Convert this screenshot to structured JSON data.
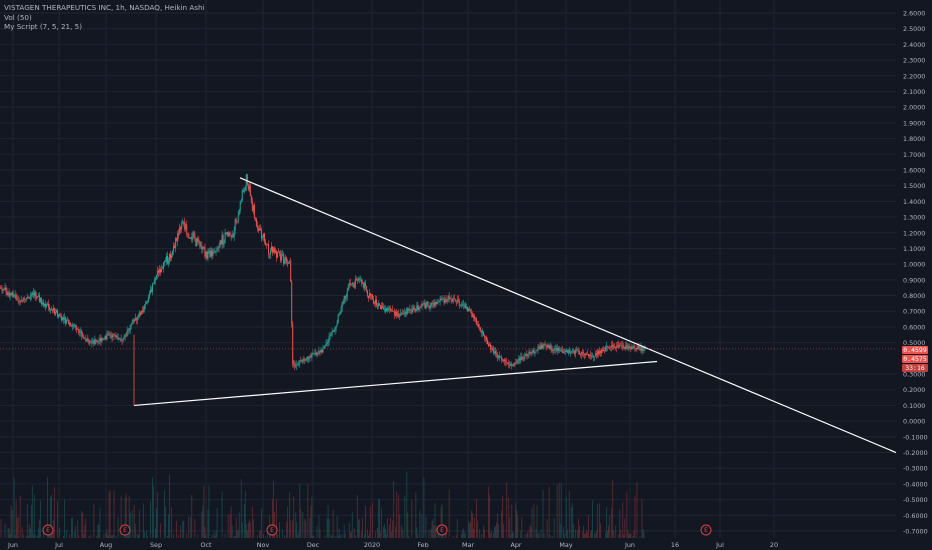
{
  "legend": {
    "title": "VISTAGEN THERAPEUTICS INC, 1h, NASDAQ, Heikin Ashi",
    "volume": "Vol (50)",
    "script": "My Script (7, 5, 21, 5)"
  },
  "price_tags": {
    "last_price": "0.4599",
    "close_price": "0.4575",
    "countdown": "33:16"
  },
  "earnings_marker_label": "E",
  "colors": {
    "background": "#131722",
    "up": "#26a69a",
    "down": "#ef5350",
    "trendline": "#ffffff",
    "grid": "#1f2433",
    "axis_text": "#b2b5be"
  },
  "chart_data": {
    "type": "candlestick",
    "title": "VISTAGEN THERAPEUTICS INC, 1h, NASDAQ, Heikin Ashi",
    "x_ticks": [
      "Jun",
      "Jul",
      "Aug",
      "Sep",
      "Oct",
      "Nov",
      "Dec",
      "2020",
      "Feb",
      "Mar",
      "Apr",
      "May",
      "Jun",
      "16",
      "Jul",
      "20"
    ],
    "y_ticks": [
      "2.6000",
      "2.5000",
      "2.4000",
      "2.3000",
      "2.2000",
      "2.1000",
      "2.0000",
      "1.9000",
      "1.8000",
      "1.7000",
      "1.6000",
      "1.5000",
      "1.4000",
      "1.3000",
      "1.2000",
      "1.1000",
      "1.0000",
      "0.9000",
      "0.8000",
      "0.7000",
      "0.6000",
      "0.5000",
      "0.3000",
      "0.2000",
      "0.1000",
      "0.0000",
      "-0.1000",
      "-0.2000",
      "-0.3000",
      "-0.4000",
      "-0.5000",
      "-0.6000",
      "-0.7000"
    ],
    "ylim": [
      -0.72,
      2.65
    ],
    "price_path": [
      {
        "t": 0.0,
        "p": 0.85
      },
      {
        "t": 0.02,
        "p": 0.78
      },
      {
        "t": 0.04,
        "p": 0.8
      },
      {
        "t": 0.06,
        "p": 0.72
      },
      {
        "t": 0.075,
        "p": 0.65
      },
      {
        "t": 0.09,
        "p": 0.6
      },
      {
        "t": 0.1,
        "p": 0.52
      },
      {
        "t": 0.11,
        "p": 0.5
      },
      {
        "t": 0.13,
        "p": 0.55
      },
      {
        "t": 0.145,
        "p": 0.52
      },
      {
        "t": 0.155,
        "p": 0.62
      },
      {
        "t": 0.17,
        "p": 0.72
      },
      {
        "t": 0.185,
        "p": 0.95
      },
      {
        "t": 0.2,
        "p": 1.05
      },
      {
        "t": 0.215,
        "p": 1.25
      },
      {
        "t": 0.23,
        "p": 1.15
      },
      {
        "t": 0.245,
        "p": 1.05
      },
      {
        "t": 0.26,
        "p": 1.15
      },
      {
        "t": 0.275,
        "p": 1.2
      },
      {
        "t": 0.29,
        "p": 1.55
      },
      {
        "t": 0.3,
        "p": 1.3
      },
      {
        "t": 0.315,
        "p": 1.1
      },
      {
        "t": 0.33,
        "p": 1.05
      },
      {
        "t": 0.342,
        "p": 1.0
      },
      {
        "t": 0.345,
        "p": 0.35
      },
      {
        "t": 0.36,
        "p": 0.4
      },
      {
        "t": 0.38,
        "p": 0.45
      },
      {
        "t": 0.395,
        "p": 0.6
      },
      {
        "t": 0.41,
        "p": 0.85
      },
      {
        "t": 0.425,
        "p": 0.9
      },
      {
        "t": 0.435,
        "p": 0.8
      },
      {
        "t": 0.45,
        "p": 0.72
      },
      {
        "t": 0.47,
        "p": 0.68
      },
      {
        "t": 0.49,
        "p": 0.72
      },
      {
        "t": 0.51,
        "p": 0.75
      },
      {
        "t": 0.53,
        "p": 0.78
      },
      {
        "t": 0.55,
        "p": 0.72
      },
      {
        "t": 0.565,
        "p": 0.6
      },
      {
        "t": 0.58,
        "p": 0.45
      },
      {
        "t": 0.6,
        "p": 0.35
      },
      {
        "t": 0.62,
        "p": 0.42
      },
      {
        "t": 0.64,
        "p": 0.48
      },
      {
        "t": 0.66,
        "p": 0.45
      },
      {
        "t": 0.68,
        "p": 0.44
      },
      {
        "t": 0.7,
        "p": 0.42
      },
      {
        "t": 0.72,
        "p": 0.48
      },
      {
        "t": 0.74,
        "p": 0.47
      },
      {
        "t": 0.76,
        "p": 0.46
      }
    ],
    "trendlines": [
      {
        "name": "upper",
        "from": {
          "date": "Oct",
          "price": 1.55
        },
        "to": {
          "date": "20",
          "price": -0.2
        }
      },
      {
        "name": "lower",
        "from": {
          "date": "Aug",
          "price": 0.1
        },
        "to": {
          "date": "Jun",
          "price": 0.38
        }
      }
    ],
    "earnings_markers": 6
  }
}
